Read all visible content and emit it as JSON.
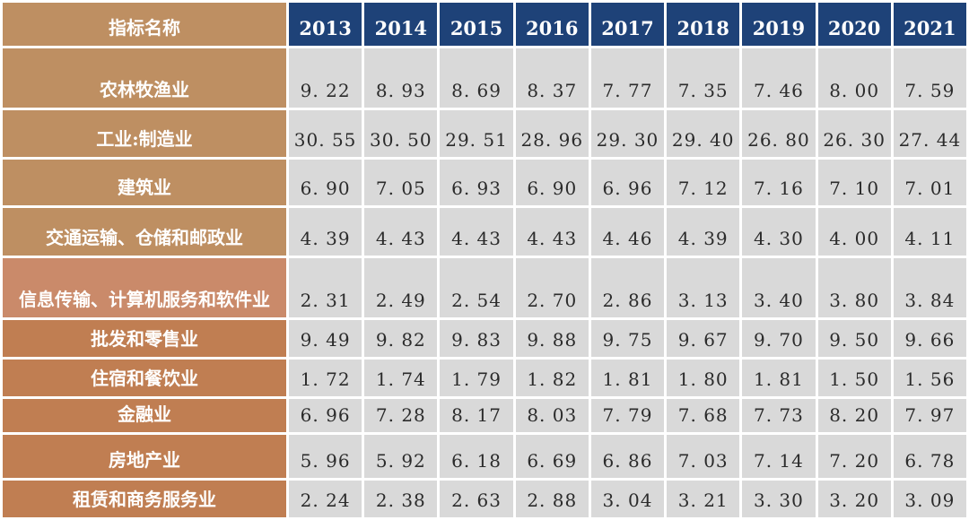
{
  "colors": {
    "header_bg": "#1E4278",
    "header_text": "#FFFFFF",
    "label_bg_tan": "#BE8F62",
    "label_bg_salmon": "#CA8A6A",
    "label_bg_orange": "#C07E52",
    "cell_bg": "#D9D9D9",
    "value_text": "#2B2B2B",
    "gap": "#FFFFFF"
  },
  "chart_data": {
    "type": "table",
    "title": "",
    "label_column_header": "指标名称",
    "columns": [
      "指标名称",
      "2013",
      "2014",
      "2015",
      "2016",
      "2017",
      "2018",
      "2019",
      "2020",
      "2021"
    ],
    "rows": [
      {
        "label": "农林牧渔业",
        "tone": "tan",
        "values": [
          "9.22",
          "8.93",
          "8.69",
          "8.37",
          "7.77",
          "7.35",
          "7.46",
          "8.00",
          "7.59"
        ]
      },
      {
        "label": "工业:制造业",
        "tone": "tan",
        "values": [
          "30.55",
          "30.50",
          "29.51",
          "28.96",
          "29.30",
          "29.40",
          "26.80",
          "26.30",
          "27.44"
        ]
      },
      {
        "label": "建筑业",
        "tone": "tan",
        "values": [
          "6.90",
          "7.05",
          "6.93",
          "6.90",
          "6.96",
          "7.12",
          "7.16",
          "7.10",
          "7.01"
        ]
      },
      {
        "label": "交通运输、仓储和邮政业",
        "tone": "tan",
        "values": [
          "4.39",
          "4.43",
          "4.43",
          "4.43",
          "4.46",
          "4.39",
          "4.30",
          "4.00",
          "4.11"
        ]
      },
      {
        "label": "信息传输、计算机服务和软件业",
        "tone": "salmon",
        "values": [
          "2.31",
          "2.49",
          "2.54",
          "2.70",
          "2.86",
          "3.13",
          "3.40",
          "3.80",
          "3.84"
        ]
      },
      {
        "label": "批发和零售业",
        "tone": "orange",
        "values": [
          "9.49",
          "9.82",
          "9.83",
          "9.88",
          "9.75",
          "9.67",
          "9.70",
          "9.50",
          "9.66"
        ]
      },
      {
        "label": "住宿和餐饮业",
        "tone": "orange",
        "values": [
          "1.72",
          "1.74",
          "1.79",
          "1.82",
          "1.81",
          "1.80",
          "1.81",
          "1.50",
          "1.56"
        ]
      },
      {
        "label": "金融业",
        "tone": "orange",
        "values": [
          "6.96",
          "7.28",
          "8.17",
          "8.03",
          "7.79",
          "7.68",
          "7.73",
          "8.20",
          "7.97"
        ]
      },
      {
        "label": "房地产业",
        "tone": "orange",
        "values": [
          "5.96",
          "5.92",
          "6.18",
          "6.69",
          "6.86",
          "7.03",
          "7.14",
          "7.20",
          "6.78"
        ]
      },
      {
        "label": "租赁和商务服务业",
        "tone": "orange",
        "values": [
          "2.24",
          "2.38",
          "2.63",
          "2.88",
          "3.04",
          "3.21",
          "3.30",
          "3.20",
          "3.09"
        ]
      }
    ]
  }
}
